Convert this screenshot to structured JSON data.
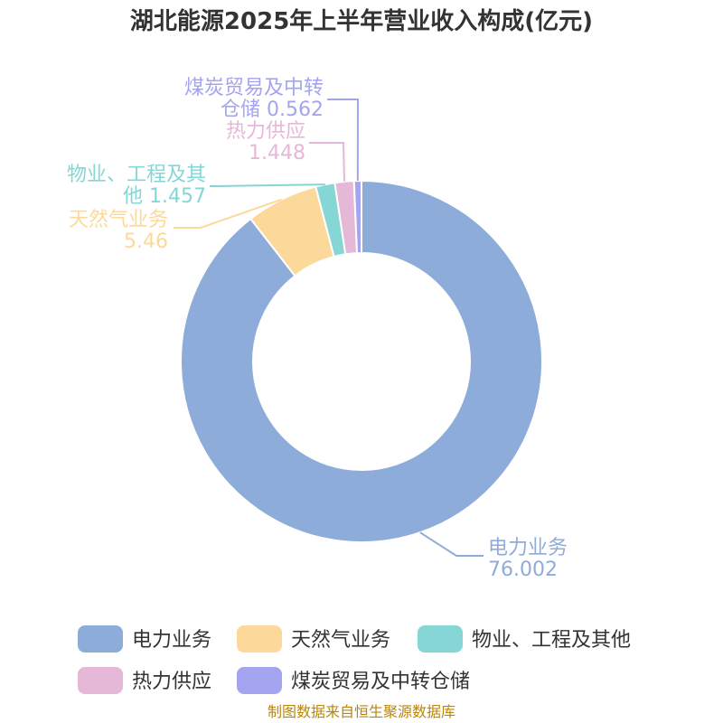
{
  "chart_data": {
    "type": "pie",
    "variant": "donut",
    "title": "湖北能源2025年上半年营业收入构成(亿元)",
    "series": [
      {
        "name": "电力业务",
        "value": 76.002,
        "color": "#8eacd9",
        "label_lines": [
          "电力业务",
          "76.002"
        ]
      },
      {
        "name": "天然气业务",
        "value": 5.46,
        "color": "#fcd99a",
        "label_lines": [
          "天然气业务",
          "5.46"
        ]
      },
      {
        "name": "物业、工程及其他",
        "value": 1.457,
        "color": "#86d6d6",
        "label_lines": [
          "物业、工程及其",
          "他 1.457"
        ]
      },
      {
        "name": "热力供应",
        "value": 1.448,
        "color": "#e6b8d7",
        "label_lines": [
          "热力供应",
          "1.448"
        ]
      },
      {
        "name": "煤炭贸易及中转仓储",
        "value": 0.562,
        "color": "#a4a4f0",
        "label_lines": [
          "煤炭贸易及中转",
          "仓储 0.562"
        ]
      }
    ],
    "legend_position": "bottom",
    "source": "制图数据来自恒生聚源数据库"
  }
}
